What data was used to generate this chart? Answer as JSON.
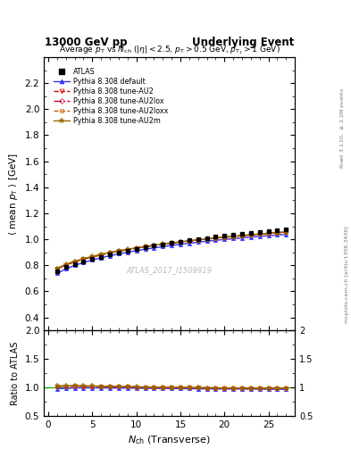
{
  "title_left": "13000 GeV pp",
  "title_right": "Underlying Event",
  "plot_title": "Average $p_{\\mathrm{T}}$ vs $N_{\\mathrm{ch}}$ ($|\\eta| < 2.5$, $p_{\\mathrm{T}} > 0.5$ GeV, $p_{\\mathrm{T}_1} > 1$ GeV)",
  "ylabel_main": "$\\langle$ mean $p_{\\mathrm{T}}$ $\\rangle$ [GeV]",
  "ylabel_ratio": "Ratio to ATLAS",
  "xlabel": "$N_{\\mathrm{ch}}$ (Transverse)",
  "right_label": "mcplots.cern.ch [arXiv:1306.3436]",
  "right_label2": "Rivet 3.1.10, $\\geq$ 2.2M events",
  "watermark": "ATLAS_2017_I1509919",
  "ylim_main": [
    0.3,
    2.4
  ],
  "ylim_ratio": [
    0.5,
    2.0
  ],
  "yticks_main": [
    0.4,
    0.6,
    0.8,
    1.0,
    1.2,
    1.4,
    1.6,
    1.8,
    2.0,
    2.2
  ],
  "yticks_ratio": [
    0.5,
    1.0,
    1.5,
    2.0
  ],
  "xlim": [
    -0.5,
    28
  ],
  "xticks": [
    0,
    5,
    10,
    15,
    20,
    25
  ],
  "nch": [
    1,
    2,
    3,
    4,
    5,
    6,
    7,
    8,
    9,
    10,
    11,
    12,
    13,
    14,
    15,
    16,
    17,
    18,
    19,
    20,
    21,
    22,
    23,
    24,
    25,
    26,
    27
  ],
  "atlas_data": [
    0.757,
    0.786,
    0.808,
    0.829,
    0.848,
    0.866,
    0.883,
    0.898,
    0.912,
    0.926,
    0.939,
    0.951,
    0.962,
    0.973,
    0.983,
    0.993,
    1.002,
    1.011,
    1.019,
    1.027,
    1.035,
    1.042,
    1.049,
    1.056,
    1.062,
    1.068,
    1.074
  ],
  "pythia_default": [
    0.738,
    0.773,
    0.8,
    0.822,
    0.841,
    0.859,
    0.874,
    0.888,
    0.901,
    0.913,
    0.924,
    0.934,
    0.944,
    0.953,
    0.962,
    0.97,
    0.978,
    0.985,
    0.992,
    0.999,
    1.005,
    1.011,
    1.017,
    1.023,
    1.028,
    1.033,
    1.038
  ],
  "pythia_AU2": [
    0.772,
    0.803,
    0.826,
    0.847,
    0.865,
    0.881,
    0.896,
    0.909,
    0.921,
    0.932,
    0.943,
    0.953,
    0.962,
    0.971,
    0.979,
    0.987,
    0.995,
    1.002,
    1.009,
    1.016,
    1.022,
    1.028,
    1.034,
    1.04,
    1.045,
    1.05,
    1.055
  ],
  "pythia_AU2lox": [
    0.772,
    0.803,
    0.827,
    0.848,
    0.865,
    0.881,
    0.896,
    0.909,
    0.921,
    0.933,
    0.943,
    0.953,
    0.963,
    0.972,
    0.98,
    0.988,
    0.995,
    1.002,
    1.009,
    1.016,
    1.022,
    1.028,
    1.034,
    1.04,
    1.046,
    1.051,
    1.056
  ],
  "pythia_AU2loxx": [
    0.773,
    0.804,
    0.828,
    0.848,
    0.866,
    0.882,
    0.897,
    0.91,
    0.922,
    0.933,
    0.944,
    0.953,
    0.963,
    0.972,
    0.98,
    0.988,
    0.996,
    1.003,
    1.01,
    1.017,
    1.023,
    1.029,
    1.035,
    1.041,
    1.047,
    1.052,
    1.057
  ],
  "pythia_AU2m": [
    0.778,
    0.809,
    0.832,
    0.852,
    0.869,
    0.885,
    0.899,
    0.912,
    0.924,
    0.935,
    0.945,
    0.955,
    0.964,
    0.973,
    0.981,
    0.989,
    0.996,
    1.003,
    1.01,
    1.016,
    1.022,
    1.028,
    1.034,
    1.04,
    1.046,
    1.051,
    1.056
  ],
  "color_atlas": "#000000",
  "color_default": "#3333ff",
  "color_AU2": "#cc0000",
  "color_AU2lox": "#cc0033",
  "color_AU2loxx": "#cc6600",
  "color_AU2m": "#996600",
  "atlas_err": 0.008,
  "legend_entries": [
    "ATLAS",
    "Pythia 8.308 default",
    "Pythia 8.308 tune-AU2",
    "Pythia 8.308 tune-AU2lox",
    "Pythia 8.308 tune-AU2loxx",
    "Pythia 8.308 tune-AU2m"
  ]
}
